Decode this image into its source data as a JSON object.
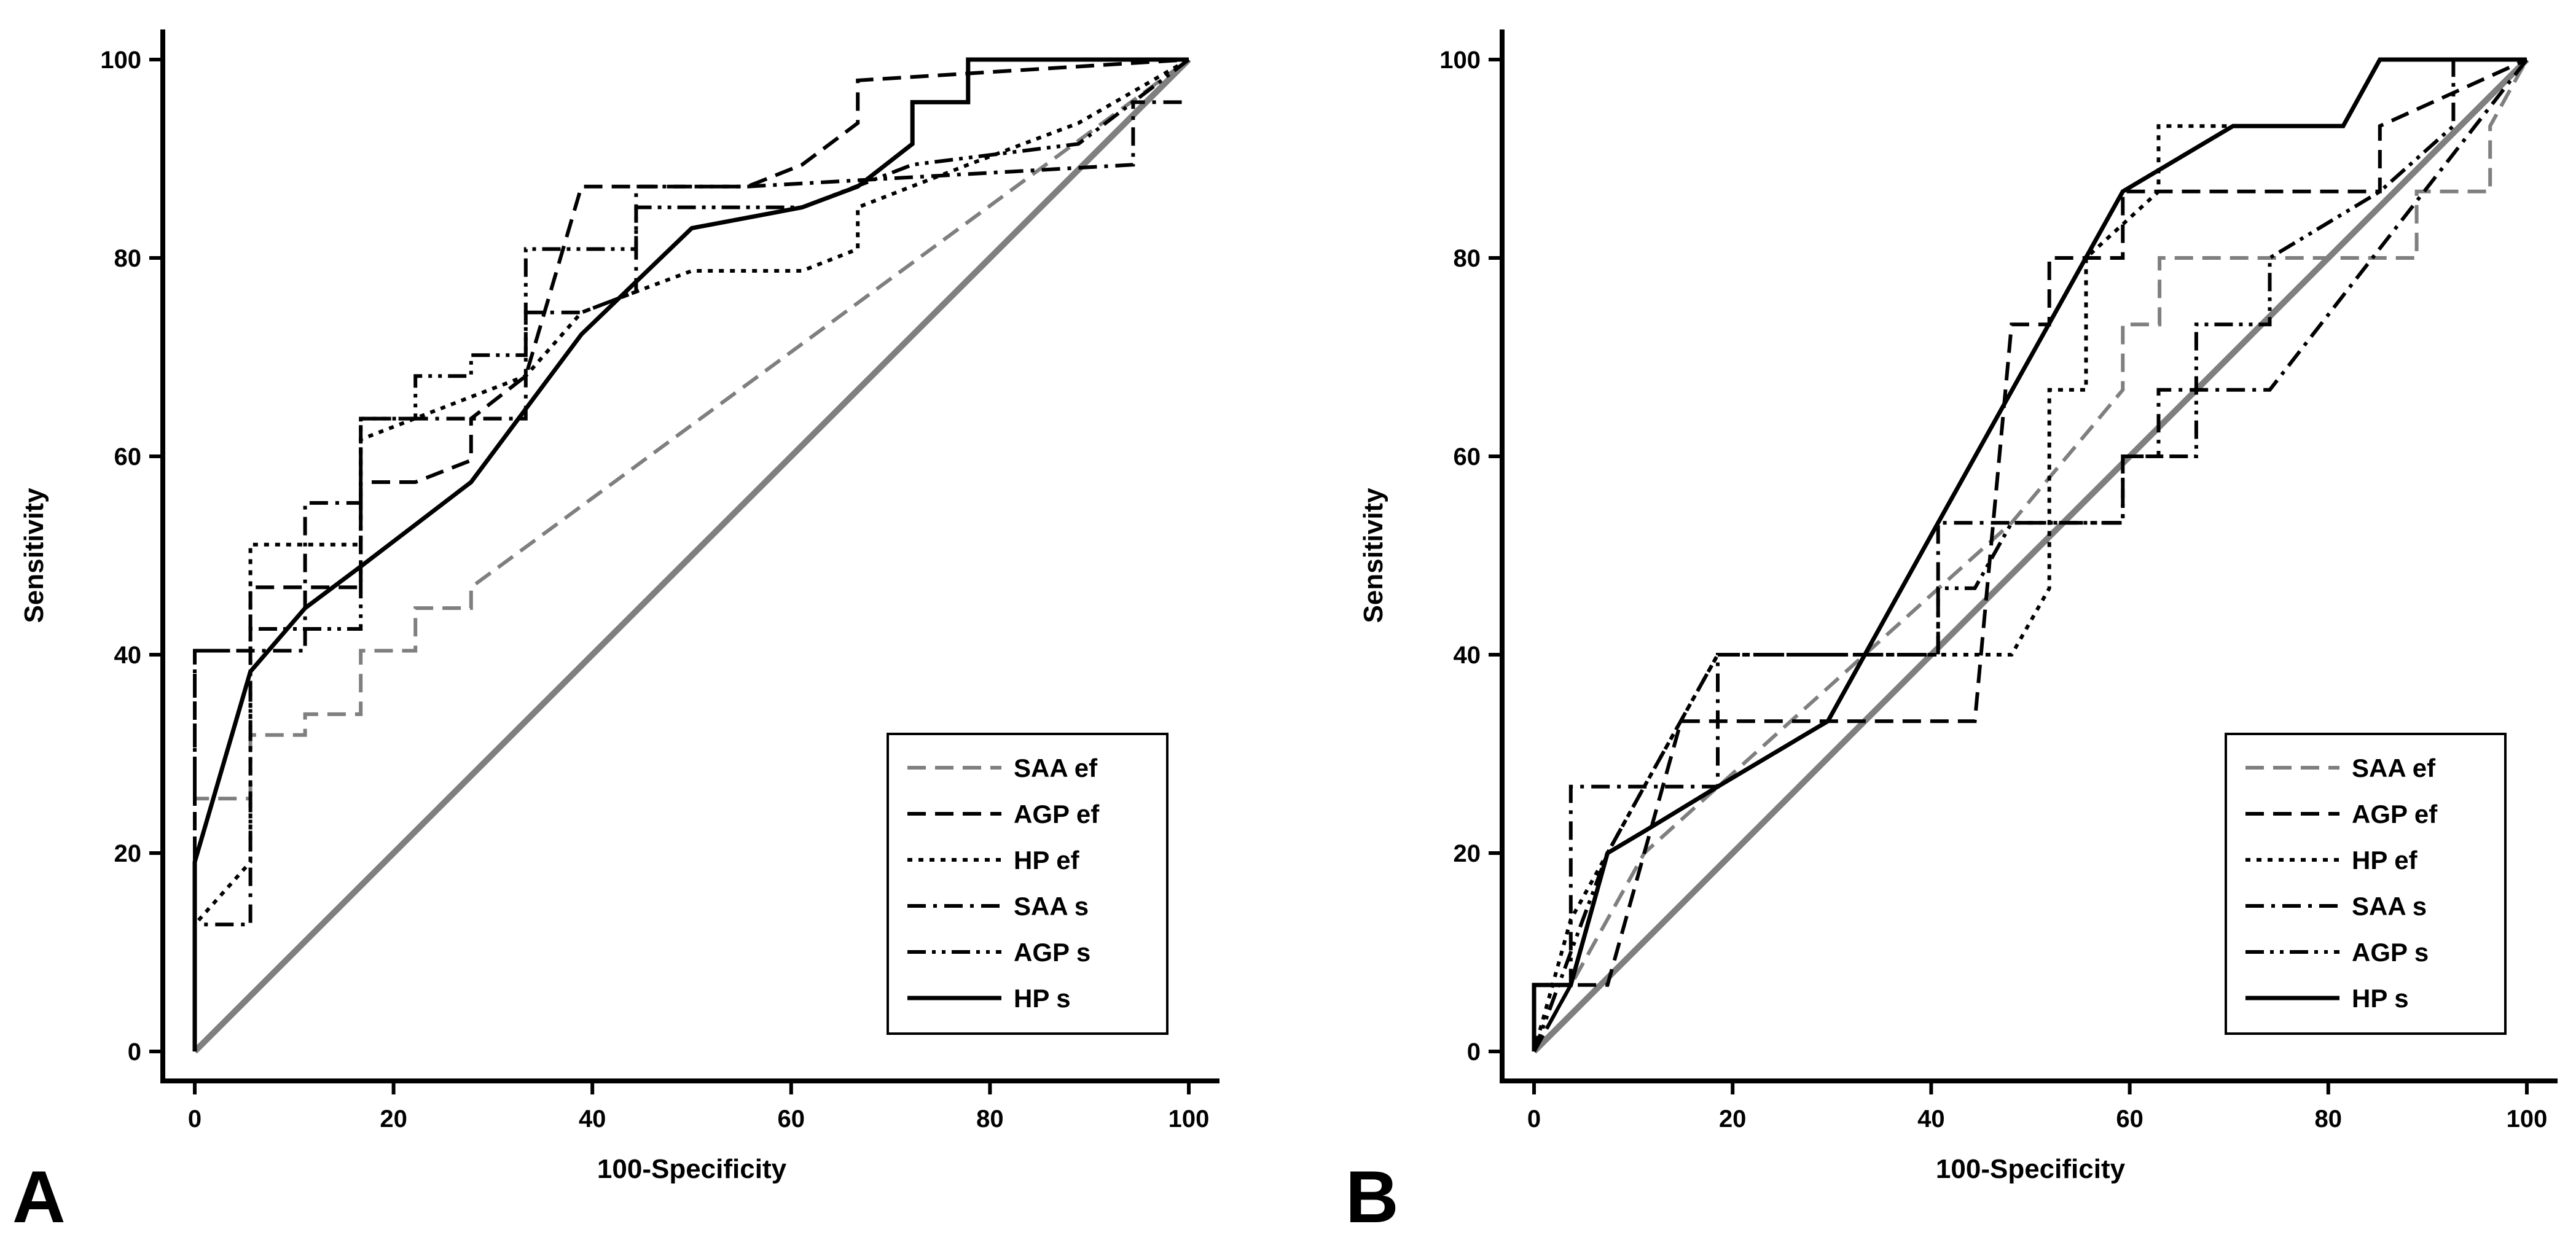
{
  "chart_data": [
    {
      "type": "line",
      "panel_label": "A",
      "xlabel": "100-Specificity",
      "ylabel": "Sensitivity",
      "xlim": [
        0,
        100
      ],
      "ylim": [
        0,
        100
      ],
      "xticks": [
        "0",
        "20",
        "40",
        "60",
        "80",
        "100"
      ],
      "yticks": [
        "0",
        "20",
        "40",
        "60",
        "80",
        "100"
      ],
      "legend_position": "bottom-right",
      "reference_line": {
        "name": "Reference",
        "x": [
          0,
          100
        ],
        "y": [
          0,
          100
        ],
        "color": "#7f7f7f"
      },
      "series": [
        {
          "name": "SAA ef",
          "style": "dashed",
          "color": "#7f7f7f",
          "x": [
            0,
            0,
            5.6,
            5.6,
            11.1,
            11.1,
            16.7,
            16.7,
            22.2,
            22.2,
            27.8,
            27.8,
            100
          ],
          "y": [
            0,
            25.5,
            25.5,
            31.9,
            31.9,
            34,
            34,
            40.4,
            40.4,
            44.7,
            44.7,
            46.8,
            100
          ]
        },
        {
          "name": "AGP ef",
          "style": "dashed",
          "color": "#000000",
          "x": [
            0,
            0,
            5.6,
            5.6,
            16.7,
            16.7,
            22.2,
            27.8,
            27.8,
            33.3,
            38.9,
            44.4,
            55.6,
            61.1,
            66.7,
            66.7,
            100
          ],
          "y": [
            0,
            40.4,
            40.4,
            46.8,
            46.8,
            57.4,
            57.4,
            59.6,
            63.8,
            68.1,
            87.2,
            87.2,
            87.2,
            89.4,
            93.6,
            97.9,
            100
          ]
        },
        {
          "name": "HP ef",
          "style": "dotted",
          "color": "#000000",
          "x": [
            0,
            0,
            5.6,
            5.6,
            16.7,
            16.7,
            27.8,
            33.3,
            38.9,
            44.4,
            50,
            61.1,
            66.7,
            66.7,
            77.8,
            88.9,
            100
          ],
          "y": [
            0,
            12.8,
            19.1,
            51.1,
            51.1,
            61.7,
            66,
            68.1,
            74.5,
            76.6,
            78.7,
            78.7,
            80.9,
            85.1,
            89.4,
            93.6,
            100
          ]
        },
        {
          "name": "SAA s",
          "style": "dashdot",
          "color": "#000000",
          "x": [
            0,
            0,
            5.6,
            5.6,
            11.1,
            11.1,
            16.7,
            16.7,
            33.3,
            33.3,
            38.9,
            44.4,
            44.4,
            55.6,
            94.4,
            94.4,
            100
          ],
          "y": [
            0,
            12.8,
            12.8,
            40.4,
            40.4,
            55.3,
            55.3,
            63.8,
            63.8,
            74.5,
            74.5,
            76.6,
            87.2,
            87.2,
            89.4,
            95.7,
            95.7
          ]
        },
        {
          "name": "AGP s",
          "style": "dashdotdot",
          "color": "#000000",
          "x": [
            0,
            0,
            5.6,
            5.6,
            16.7,
            16.7,
            22.2,
            22.2,
            27.8,
            27.8,
            33.3,
            33.3,
            44.4,
            44.4,
            50,
            61.1,
            72.2,
            88.9,
            100
          ],
          "y": [
            0,
            40.4,
            40.4,
            42.6,
            42.6,
            63.8,
            63.8,
            68.1,
            68.1,
            70.2,
            70.2,
            80.9,
            80.9,
            85.1,
            85.1,
            85.1,
            89.4,
            91.5,
            100
          ]
        },
        {
          "name": "HP s",
          "style": "solid",
          "color": "#000000",
          "x": [
            0,
            0,
            5.6,
            11.1,
            16.7,
            27.8,
            38.9,
            50,
            61.1,
            66.7,
            72.2,
            72.2,
            77.8,
            77.8,
            100
          ],
          "y": [
            0,
            19.1,
            38.3,
            44.7,
            48.9,
            57.4,
            72.3,
            83,
            85.1,
            87.2,
            91.5,
            95.7,
            95.7,
            100,
            100
          ]
        }
      ]
    },
    {
      "type": "line",
      "panel_label": "B",
      "xlabel": "100-Specificity",
      "ylabel": "Sensitivity",
      "xlim": [
        0,
        100
      ],
      "ylim": [
        0,
        100
      ],
      "xticks": [
        "0",
        "20",
        "40",
        "60",
        "80",
        "100"
      ],
      "yticks": [
        "0",
        "20",
        "40",
        "60",
        "80",
        "100"
      ],
      "legend_position": "bottom-right",
      "reference_line": {
        "name": "Reference",
        "x": [
          0,
          100
        ],
        "y": [
          0,
          100
        ],
        "color": "#7f7f7f"
      },
      "series": [
        {
          "name": "SAA ef",
          "style": "dashed",
          "color": "#7f7f7f",
          "x": [
            0,
            11.1,
            33.3,
            48.1,
            59.3,
            59.3,
            63,
            63,
            88.9,
            88.9,
            96.3,
            96.3,
            100
          ],
          "y": [
            0,
            20,
            40,
            53.3,
            66.7,
            73.3,
            73.3,
            80,
            80,
            86.7,
            86.7,
            93.3,
            100
          ]
        },
        {
          "name": "AGP ef",
          "style": "dashed",
          "color": "#000000",
          "x": [
            0,
            3.7,
            7.4,
            14.8,
            44.4,
            48.1,
            48.1,
            51.9,
            51.9,
            59.3,
            59.3,
            85.2,
            85.2,
            100
          ],
          "y": [
            0,
            6.7,
            6.7,
            33.3,
            33.3,
            73.3,
            73.3,
            73.3,
            80,
            80,
            86.7,
            86.7,
            93.3,
            100
          ]
        },
        {
          "name": "HP ef",
          "style": "dotted",
          "color": "#000000",
          "x": [
            0,
            3.7,
            11.1,
            18.5,
            37,
            48.1,
            51.9,
            51.9,
            55.6,
            55.6,
            62.9,
            62.9,
            81.5,
            85.2,
            100
          ],
          "y": [
            0,
            13.3,
            26.7,
            40,
            40,
            40,
            46.7,
            66.7,
            66.7,
            80,
            86.7,
            93.3,
            93.3,
            100,
            100
          ]
        },
        {
          "name": "SAA s",
          "style": "dashdot",
          "color": "#000000",
          "x": [
            0,
            3.7,
            3.7,
            11.1,
            18.5,
            18.5,
            40.7,
            40.7,
            59.3,
            59.3,
            62.9,
            62.9,
            74.1,
            100
          ],
          "y": [
            0,
            6.7,
            26.7,
            26.7,
            26.7,
            40,
            40,
            53.3,
            53.3,
            60,
            60,
            66.7,
            66.7,
            100
          ]
        },
        {
          "name": "AGP s",
          "style": "dashdotdot",
          "color": "#000000",
          "x": [
            0,
            7.4,
            11.1,
            18.5,
            40.7,
            40.7,
            44.4,
            48.1,
            59.3,
            59.3,
            66.7,
            66.7,
            74.1,
            74.1,
            85.2,
            92.6,
            92.6,
            100
          ],
          "y": [
            0,
            20,
            26.7,
            40,
            40,
            46.7,
            46.7,
            53.3,
            53.3,
            60,
            60,
            73.3,
            73.3,
            80,
            86.7,
            93.3,
            100,
            100
          ]
        },
        {
          "name": "HP s",
          "style": "solid",
          "color": "#000000",
          "x": [
            0,
            0,
            3.7,
            7.4,
            11.1,
            18.5,
            29.6,
            40.7,
            59.3,
            70.4,
            81.5,
            85.2,
            96.3,
            100
          ],
          "y": [
            0,
            6.7,
            6.7,
            20,
            22.2,
            26.7,
            33.3,
            53.3,
            86.7,
            93.3,
            93.3,
            100,
            100,
            100
          ]
        }
      ]
    }
  ]
}
